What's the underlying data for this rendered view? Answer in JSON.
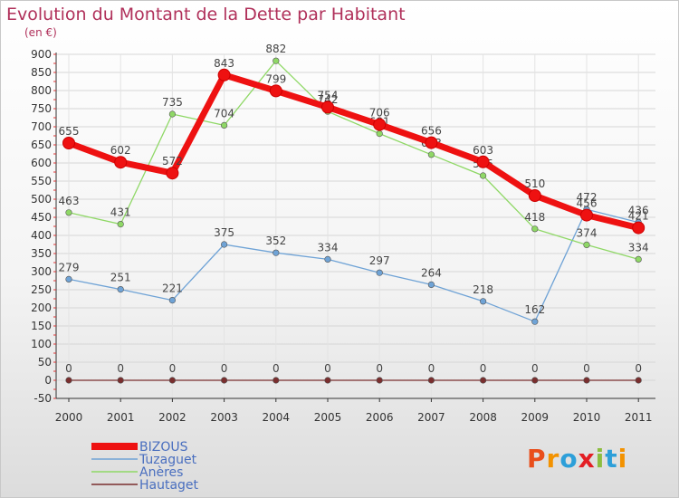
{
  "chart_data": {
    "type": "line",
    "title": "Evolution du Montant de la Dette par Habitant",
    "unit_label": "(en €)",
    "xlabel": "",
    "ylabel": "",
    "ylim": [
      -50,
      900
    ],
    "y_ticks": [
      900,
      850,
      800,
      750,
      700,
      650,
      600,
      550,
      500,
      450,
      400,
      350,
      300,
      250,
      200,
      150,
      100,
      50,
      0,
      -50
    ],
    "categories": [
      "2000",
      "2001",
      "2002",
      "2003",
      "2004",
      "2005",
      "2006",
      "2007",
      "2008",
      "2009",
      "2010",
      "2011"
    ],
    "series": [
      {
        "name": "Hautaget",
        "color": "#7a2e2e",
        "values": [
          0,
          0,
          0,
          0,
          0,
          0,
          0,
          0,
          0,
          0,
          0,
          0
        ]
      },
      {
        "name": "Tuzaguet",
        "color": "#6fa3d6",
        "values": [
          279,
          251,
          221,
          375,
          352,
          334,
          297,
          264,
          218,
          162,
          472,
          436
        ]
      },
      {
        "name": "Anères",
        "color": "#8fd866",
        "values": [
          463,
          431,
          735,
          704,
          882,
          742,
          681,
          623,
          565,
          418,
          374,
          334
        ]
      },
      {
        "name": "BIZOUS",
        "color": "#ee1111",
        "values": [
          655,
          602,
          572,
          843,
          799,
          754,
          706,
          656,
          603,
          510,
          456,
          421
        ]
      }
    ],
    "legend_order": [
      "BIZOUS",
      "Tuzaguet",
      "Anères",
      "Hautaget"
    ],
    "legend_placement": "bottom-left"
  },
  "brand": {
    "text": "Proxiti",
    "letters": [
      {
        "ch": "P",
        "color": "#e94e1b"
      },
      {
        "ch": "r",
        "color": "#f39200"
      },
      {
        "ch": "o",
        "color": "#2d9fd9"
      },
      {
        "ch": "x",
        "color": "#e31e24"
      },
      {
        "ch": "i",
        "color": "#8cbd3f"
      },
      {
        "ch": "t",
        "color": "#2d9fd9"
      },
      {
        "ch": "i",
        "color": "#f39200"
      }
    ]
  }
}
